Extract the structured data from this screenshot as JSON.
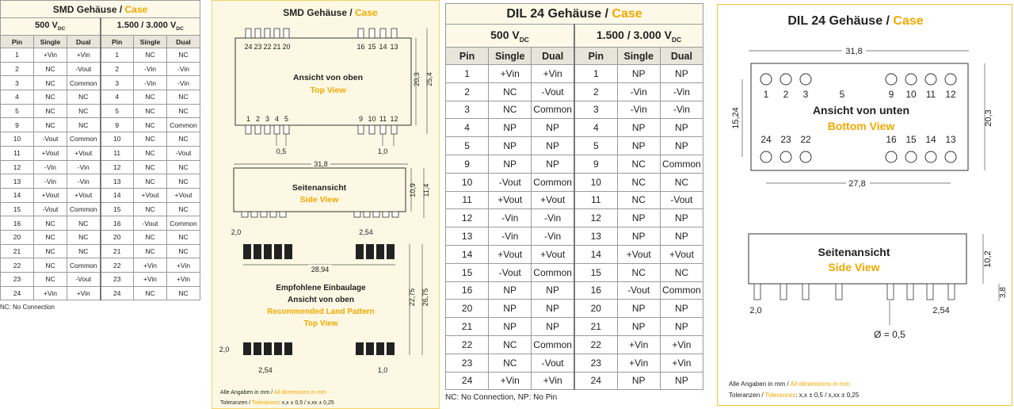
{
  "smd_table": {
    "title": "SMD Gehäuse / ",
    "title_accent": "Case",
    "groups": [
      {
        "text": "500 V",
        "sub": "DC"
      },
      {
        "text": "1.500 / 3.000 V",
        "sub": "DC"
      }
    ],
    "columns": [
      "Pin",
      "Single",
      "Dual",
      "Pin",
      "Single",
      "Dual"
    ],
    "rows": [
      [
        1,
        "+Vin",
        "+Vin",
        1,
        "NC",
        "NC"
      ],
      [
        2,
        "NC",
        "-Vout",
        2,
        "-Vin",
        "-Vin"
      ],
      [
        3,
        "NC",
        "Common",
        3,
        "-Vin",
        "-Vin"
      ],
      [
        4,
        "NC",
        "NC",
        4,
        "NC",
        "NC"
      ],
      [
        5,
        "NC",
        "NC",
        5,
        "NC",
        "NC"
      ],
      [
        9,
        "NC",
        "NC",
        9,
        "NC",
        "Common"
      ],
      [
        10,
        "-Vout",
        "Common",
        10,
        "NC",
        "NC"
      ],
      [
        11,
        "+Vout",
        "+Vout",
        11,
        "NC",
        "-Vout"
      ],
      [
        12,
        "-Vin",
        "-Vin",
        12,
        "NC",
        "NC"
      ],
      [
        13,
        "-Vin",
        "-Vin",
        13,
        "NC",
        "NC"
      ],
      [
        14,
        "+Vout",
        "+Vout",
        14,
        "+Vout",
        "+Vout"
      ],
      [
        15,
        "-Vout",
        "Common",
        15,
        "NC",
        "NC"
      ],
      [
        16,
        "NC",
        "NC",
        16,
        "-Vout",
        "Common"
      ],
      [
        20,
        "NC",
        "NC",
        20,
        "NC",
        "NC"
      ],
      [
        21,
        "NC",
        "NC",
        21,
        "NC",
        "NC"
      ],
      [
        22,
        "NC",
        "Common",
        22,
        "+Vin",
        "+Vin"
      ],
      [
        23,
        "NC",
        "-Vout",
        23,
        "+Vin",
        "+Vin"
      ],
      [
        24,
        "+Vin",
        "+Vin",
        24,
        "NC",
        "NC"
      ]
    ],
    "note": "NC: No Connection"
  },
  "smd_drawing": {
    "title": "SMD Gehäuse / ",
    "title_accent": "Case",
    "top_pins_upper": [
      24,
      23,
      22,
      21,
      20,
      16,
      15,
      14,
      13
    ],
    "top_pins_lower": [
      1,
      2,
      3,
      4,
      5,
      9,
      10,
      11,
      12
    ],
    "top_view": {
      "de": "Ansicht von oben",
      "en": "Top View"
    },
    "side_view": {
      "de": "Seitenansicht",
      "en": "Side View"
    },
    "land_pattern": {
      "de1": "Empfohlene Einbaulage",
      "de2": "Ansicht von oben",
      "en1": "Recommended Land Pattern",
      "en2": "Top View"
    },
    "dims": {
      "height_body": "20,3",
      "height_total": "25,4",
      "pin_width": "0,5",
      "pin_end": "1,0",
      "length": "31,8",
      "side_height": "10,9",
      "side_height_total": "11,4",
      "side_offset": "2,0",
      "side_pitch": "2,54",
      "pad_span": "28,94",
      "pad_height1": "22,75",
      "pad_height2": "26,75",
      "pad_offset": "2,0",
      "pad_pitch": "2,54",
      "pad_end": "1,0"
    },
    "footer": {
      "dims_de": "Alle Angaben in mm / ",
      "dims_en": "All dimensions in mm",
      "tol_de": "Toleranzen / ",
      "tol_en": "Tolerances",
      "tol_values": ": x,x ± 0,5 / x,xx ± 0,25"
    }
  },
  "dil_table": {
    "title": "DIL 24 Gehäuse / ",
    "title_accent": "Case",
    "groups": [
      {
        "text": "500 V",
        "sub": "DC"
      },
      {
        "text": "1.500 / 3.000 V",
        "sub": "DC"
      }
    ],
    "columns": [
      "Pin",
      "Single",
      "Dual",
      "Pin",
      "Single",
      "Dual"
    ],
    "rows": [
      [
        1,
        "+Vin",
        "+Vin",
        1,
        "NP",
        "NP"
      ],
      [
        2,
        "NC",
        "-Vout",
        2,
        "-Vin",
        "-Vin"
      ],
      [
        3,
        "NC",
        "Common",
        3,
        "-Vin",
        "-Vin"
      ],
      [
        4,
        "NP",
        "NP",
        4,
        "NP",
        "NP"
      ],
      [
        5,
        "NP",
        "NP",
        5,
        "NP",
        "NP"
      ],
      [
        9,
        "NP",
        "NP",
        9,
        "NC",
        "Common"
      ],
      [
        10,
        "-Vout",
        "Common",
        10,
        "NC",
        "NC"
      ],
      [
        11,
        "+Vout",
        "+Vout",
        11,
        "NC",
        "-Vout"
      ],
      [
        12,
        "-Vin",
        "-Vin",
        12,
        "NP",
        "NP"
      ],
      [
        13,
        "-Vin",
        "-Vin",
        13,
        "NP",
        "NP"
      ],
      [
        14,
        "+Vout",
        "+Vout",
        14,
        "+Vout",
        "+Vout"
      ],
      [
        15,
        "-Vout",
        "Common",
        15,
        "NC",
        "NC"
      ],
      [
        16,
        "NP",
        "NP",
        16,
        "-Vout",
        "Common"
      ],
      [
        20,
        "NP",
        "NP",
        20,
        "NP",
        "NP"
      ],
      [
        21,
        "NP",
        "NP",
        21,
        "NP",
        "NP"
      ],
      [
        22,
        "NC",
        "Common",
        22,
        "+Vin",
        "+Vin"
      ],
      [
        23,
        "NC",
        "-Vout",
        23,
        "+Vin",
        "+Vin"
      ],
      [
        24,
        "+Vin",
        "+Vin",
        24,
        "NP",
        "NP"
      ]
    ],
    "note": "NC: No Connection, NP: No Pin"
  },
  "dil_drawing": {
    "title": "DIL 24 Gehäuse / ",
    "title_accent": "Case",
    "top_row": [
      1,
      2,
      3,
      5,
      9,
      10,
      11,
      12
    ],
    "bottom_row": [
      24,
      23,
      22,
      16,
      15,
      14,
      13
    ],
    "bottom_view": {
      "de": "Ansicht von unten",
      "en": "Bottom View"
    },
    "side_view": {
      "de": "Seitenansicht",
      "en": "Side View"
    },
    "dims": {
      "length": "31,8",
      "width_pins": "15,24",
      "width": "20,3",
      "pin_span": "27,8",
      "height": "10,2",
      "pin_length": "3,8",
      "offset": "2,0",
      "pitch": "2,54",
      "pin_diameter": "Ø = 0,5"
    },
    "footer": {
      "dims_de": "Alle Angaben in mm / ",
      "dims_en": "All dimensions in mm",
      "tol_de": "Toleranzen / ",
      "tol_en": "Tolerances",
      "tol_values": ": x,x ± 0,5 / x,xx ± 0,25"
    }
  }
}
